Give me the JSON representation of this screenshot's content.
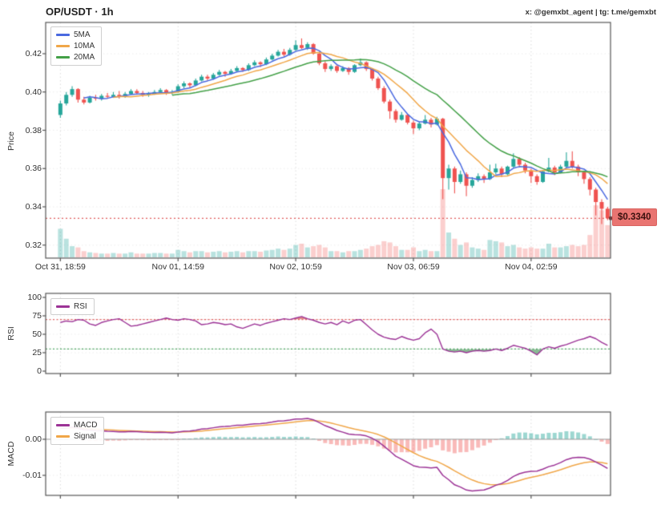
{
  "header": {
    "title": "OP/USDT · 1h",
    "watermark": "x: @gemxbt_agent | tg: t.me/gemxbt"
  },
  "price_tag": {
    "text": "$0.3340",
    "value": 0.334
  },
  "colors": {
    "up": "#26a69a",
    "down": "#ef5350",
    "vol_up": "rgba(38,166,154,0.32)",
    "vol_down": "rgba(239,83,80,0.28)",
    "ma5": "#4a69e0",
    "ma10": "#f0a648",
    "ma20": "#43a047",
    "rsi_line": "#9c3396",
    "overbought": "#e06666",
    "oversold": "#55a868",
    "ob_fill": "rgba(200,40,40,0.55)",
    "os_fill": "rgba(40,130,60,0.55)",
    "macd_line": "#9c3396",
    "signal_line": "#f0a648",
    "hist_up": "rgba(38,166,154,0.45)",
    "hist_down": "rgba(239,83,80,0.4)",
    "price_line": "#e05c5c",
    "price_dot": "#7b2d2d",
    "grid": "#dcdcdc",
    "grid_faint": "#ececec",
    "border": "#555555",
    "zero_line": "#9a9a9a",
    "text": "#333333"
  },
  "chart_data": [
    {
      "type": "candlestick",
      "title": "OP/USDT · 1h",
      "ylabel": "Price",
      "ylim": [
        0.3132,
        0.4364
      ],
      "ytick_values": [
        0.42,
        0.4,
        0.38,
        0.36,
        0.34,
        0.32
      ],
      "ytick_labels": [
        "0.42",
        "0.40",
        "0.38",
        "0.36",
        "0.34",
        "0.32"
      ],
      "xtick_indices": [
        0,
        20,
        40,
        60,
        80
      ],
      "xtick_labels": [
        "Oct 31, 18:59",
        "Nov 01, 14:59",
        "Nov 02, 10:59",
        "Nov 03, 06:59",
        "Nov 04, 02:59"
      ],
      "legend": [
        "5MA",
        "10MA",
        "20MA"
      ],
      "ma_periods": [
        5,
        10,
        20
      ],
      "last_price": 0.334,
      "grid": true,
      "legend_position": "top-left",
      "ohlcv": [
        [
          0.388,
          0.3955,
          0.3865,
          0.394,
          2.3
        ],
        [
          0.394,
          0.4,
          0.393,
          0.3985,
          1.5
        ],
        [
          0.3985,
          0.403,
          0.3975,
          0.4015,
          0.9
        ],
        [
          0.4015,
          0.402,
          0.3945,
          0.396,
          0.8
        ],
        [
          0.396,
          0.3975,
          0.3935,
          0.3945,
          0.5
        ],
        [
          0.3945,
          0.398,
          0.394,
          0.397,
          0.4
        ],
        [
          0.397,
          0.3985,
          0.3955,
          0.3965,
          0.35
        ],
        [
          0.3965,
          0.399,
          0.3955,
          0.398,
          0.3
        ],
        [
          0.398,
          0.3995,
          0.3965,
          0.3975,
          0.3
        ],
        [
          0.3975,
          0.4,
          0.397,
          0.3985,
          0.35
        ],
        [
          0.3985,
          0.4005,
          0.3965,
          0.3975,
          0.3
        ],
        [
          0.3975,
          0.4,
          0.397,
          0.399,
          0.3
        ],
        [
          0.399,
          0.4015,
          0.3985,
          0.4005,
          0.4
        ],
        [
          0.4005,
          0.4015,
          0.3985,
          0.3995,
          0.3
        ],
        [
          0.3995,
          0.4005,
          0.3975,
          0.3985,
          0.3
        ],
        [
          0.3985,
          0.4,
          0.3975,
          0.399,
          0.3
        ],
        [
          0.399,
          0.401,
          0.3985,
          0.4,
          0.35
        ],
        [
          0.4,
          0.402,
          0.3995,
          0.401,
          0.35
        ],
        [
          0.401,
          0.4015,
          0.3985,
          0.3995,
          0.3
        ],
        [
          0.3995,
          0.401,
          0.3985,
          0.4,
          0.3
        ],
        [
          0.4,
          0.404,
          0.3995,
          0.403,
          0.6
        ],
        [
          0.403,
          0.4055,
          0.402,
          0.4045,
          0.5
        ],
        [
          0.4045,
          0.405,
          0.402,
          0.4035,
          0.4
        ],
        [
          0.4035,
          0.407,
          0.403,
          0.406,
          0.5
        ],
        [
          0.406,
          0.409,
          0.4055,
          0.408,
          0.5
        ],
        [
          0.408,
          0.409,
          0.406,
          0.407,
          0.4
        ],
        [
          0.407,
          0.41,
          0.4065,
          0.409,
          0.45
        ],
        [
          0.409,
          0.4115,
          0.4085,
          0.4105,
          0.5
        ],
        [
          0.4105,
          0.411,
          0.408,
          0.4095,
          0.4
        ],
        [
          0.4095,
          0.412,
          0.409,
          0.411,
          0.45
        ],
        [
          0.411,
          0.4135,
          0.4105,
          0.4125,
          0.5
        ],
        [
          0.4125,
          0.413,
          0.4105,
          0.4115,
          0.4
        ],
        [
          0.4115,
          0.415,
          0.411,
          0.414,
          0.5
        ],
        [
          0.414,
          0.4165,
          0.4135,
          0.4155,
          0.5
        ],
        [
          0.4155,
          0.416,
          0.413,
          0.4145,
          0.45
        ],
        [
          0.4145,
          0.418,
          0.414,
          0.417,
          0.55
        ],
        [
          0.417,
          0.42,
          0.4165,
          0.419,
          0.6
        ],
        [
          0.419,
          0.422,
          0.4185,
          0.421,
          0.7
        ],
        [
          0.421,
          0.4225,
          0.4185,
          0.4195,
          0.6
        ],
        [
          0.4195,
          0.423,
          0.419,
          0.422,
          0.7
        ],
        [
          0.422,
          0.427,
          0.4215,
          0.4245,
          1.0
        ],
        [
          0.4245,
          0.428,
          0.4225,
          0.423,
          1.1
        ],
        [
          0.423,
          0.426,
          0.422,
          0.425,
          0.8
        ],
        [
          0.425,
          0.4255,
          0.4195,
          0.42,
          0.9
        ],
        [
          0.42,
          0.421,
          0.414,
          0.415,
          1.0
        ],
        [
          0.415,
          0.416,
          0.4105,
          0.412,
          0.8
        ],
        [
          0.412,
          0.4145,
          0.411,
          0.4135,
          0.5
        ],
        [
          0.4135,
          0.414,
          0.41,
          0.411,
          0.5
        ],
        [
          0.411,
          0.4135,
          0.4105,
          0.4125,
          0.4
        ],
        [
          0.4125,
          0.413,
          0.409,
          0.4105,
          0.5
        ],
        [
          0.4105,
          0.4145,
          0.41,
          0.414,
          0.5
        ],
        [
          0.414,
          0.4175,
          0.4135,
          0.4155,
          0.6
        ],
        [
          0.4155,
          0.416,
          0.411,
          0.412,
          0.7
        ],
        [
          0.412,
          0.4125,
          0.406,
          0.407,
          0.9
        ],
        [
          0.407,
          0.408,
          0.401,
          0.402,
          1.0
        ],
        [
          0.402,
          0.403,
          0.394,
          0.395,
          1.3
        ],
        [
          0.395,
          0.396,
          0.386,
          0.39,
          1.2
        ],
        [
          0.39,
          0.391,
          0.384,
          0.3855,
          0.9
        ],
        [
          0.3855,
          0.3895,
          0.385,
          0.388,
          0.6
        ],
        [
          0.388,
          0.3885,
          0.383,
          0.384,
          0.6
        ],
        [
          0.384,
          0.385,
          0.378,
          0.381,
          0.8
        ],
        [
          0.381,
          0.3845,
          0.38,
          0.3835,
          0.5
        ],
        [
          0.3835,
          0.388,
          0.383,
          0.3855,
          0.6
        ],
        [
          0.3855,
          0.3865,
          0.3815,
          0.383,
          0.5
        ],
        [
          0.383,
          0.387,
          0.3825,
          0.386,
          0.5
        ],
        [
          0.386,
          0.3865,
          0.344,
          0.355,
          5.5
        ],
        [
          0.355,
          0.362,
          0.349,
          0.36,
          2.0
        ],
        [
          0.36,
          0.361,
          0.347,
          0.353,
          1.5
        ],
        [
          0.353,
          0.359,
          0.352,
          0.357,
          1.0
        ],
        [
          0.357,
          0.358,
          0.3455,
          0.351,
          1.2
        ],
        [
          0.351,
          0.3555,
          0.35,
          0.354,
          0.8
        ],
        [
          0.354,
          0.3575,
          0.353,
          0.356,
          0.7
        ],
        [
          0.356,
          0.357,
          0.3525,
          0.3545,
          0.6
        ],
        [
          0.3545,
          0.362,
          0.354,
          0.358,
          1.4
        ],
        [
          0.358,
          0.3625,
          0.357,
          0.36,
          1.3
        ],
        [
          0.36,
          0.361,
          0.3555,
          0.357,
          1.2
        ],
        [
          0.357,
          0.3615,
          0.3565,
          0.361,
          0.9
        ],
        [
          0.361,
          0.368,
          0.3605,
          0.365,
          1.0
        ],
        [
          0.365,
          0.366,
          0.3605,
          0.362,
          0.8
        ],
        [
          0.362,
          0.363,
          0.3575,
          0.359,
          0.7
        ],
        [
          0.359,
          0.36,
          0.3525,
          0.356,
          0.8
        ],
        [
          0.356,
          0.357,
          0.3515,
          0.353,
          0.7
        ],
        [
          0.353,
          0.359,
          0.3525,
          0.3585,
          0.7
        ],
        [
          0.3585,
          0.3655,
          0.358,
          0.3605,
          1.1
        ],
        [
          0.3605,
          0.3615,
          0.3565,
          0.358,
          0.8
        ],
        [
          0.358,
          0.362,
          0.3575,
          0.361,
          0.8
        ],
        [
          0.361,
          0.3685,
          0.3605,
          0.364,
          0.9
        ],
        [
          0.364,
          0.369,
          0.36,
          0.361,
          1.0
        ],
        [
          0.361,
          0.362,
          0.356,
          0.358,
          0.9
        ],
        [
          0.358,
          0.359,
          0.352,
          0.3545,
          1.0
        ],
        [
          0.3545,
          0.3555,
          0.346,
          0.349,
          1.8
        ],
        [
          0.349,
          0.35,
          0.3355,
          0.3425,
          4.2
        ],
        [
          0.3425,
          0.344,
          0.331,
          0.339,
          3.8
        ],
        [
          0.339,
          0.34,
          0.333,
          0.334,
          2.6
        ]
      ]
    },
    {
      "type": "line",
      "name": "RSI",
      "ylabel": "RSI",
      "ylim": [
        0,
        100
      ],
      "ytick_values": [
        100,
        75,
        50,
        25,
        0
      ],
      "ytick_labels": [
        "100",
        "75",
        "50",
        "25",
        "0"
      ],
      "overbought": 70,
      "oversold": 30,
      "legend": [
        "RSI"
      ],
      "values": [
        66,
        68,
        67,
        70,
        69,
        64,
        62,
        66,
        68,
        70,
        71,
        66,
        61,
        62,
        64,
        66,
        68,
        70,
        72,
        70,
        69,
        71,
        70,
        68,
        63,
        64,
        66,
        65,
        63,
        64,
        60,
        58,
        61,
        64,
        62,
        65,
        67,
        69,
        71,
        70,
        72,
        74,
        71,
        69,
        66,
        64,
        66,
        63,
        68,
        65,
        69,
        70,
        63,
        56,
        50,
        46,
        44,
        43,
        47,
        44,
        42,
        44,
        52,
        57,
        50,
        30,
        27,
        26,
        27,
        25,
        27,
        28,
        27,
        28,
        30,
        28,
        31,
        35,
        33,
        31,
        27,
        22,
        30,
        33,
        31,
        34,
        36,
        39,
        42,
        44,
        47,
        44,
        39,
        35
      ]
    },
    {
      "type": "macd",
      "ylabel": "MACD",
      "ytick_values": [
        0.0,
        -0.01
      ],
      "ytick_labels": [
        "0.00",
        "-0.01"
      ],
      "legend": [
        "MACD",
        "Signal"
      ],
      "params": {
        "fast": 12,
        "slow": 26,
        "signal": 9
      }
    }
  ]
}
